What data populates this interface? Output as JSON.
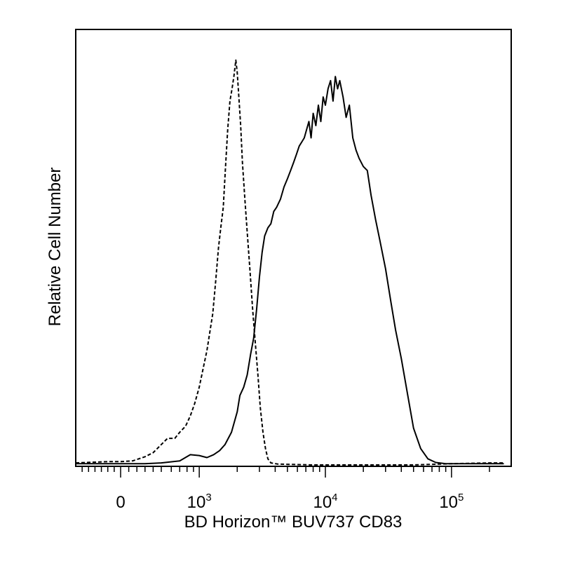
{
  "chart_data": {
    "type": "histogram",
    "xlabel": "BD Horizon™ BUV737 CD83",
    "ylabel": "Relative Cell Number",
    "x_scale": "biexponential (linear near 0, log above)",
    "x_tick_labels": [
      {
        "value": 0,
        "base": "0",
        "exp": ""
      },
      {
        "value": 1000,
        "base": "10",
        "exp": "3"
      },
      {
        "value": 10000,
        "base": "10",
        "exp": "4"
      },
      {
        "value": 100000,
        "base": "10",
        "exp": "5"
      }
    ],
    "xlim": [
      -700,
      260000
    ],
    "ylim": [
      0,
      100
    ],
    "grid": false,
    "legend": "none",
    "series": [
      {
        "style": "dashed",
        "points": [
          [
            -700,
            0.5
          ],
          [
            -200,
            0.8
          ],
          [
            0,
            0.8
          ],
          [
            150,
            1
          ],
          [
            300,
            2
          ],
          [
            400,
            3
          ],
          [
            500,
            5
          ],
          [
            560,
            6.5
          ],
          [
            640,
            6.5
          ],
          [
            700,
            8
          ],
          [
            780,
            9.5
          ],
          [
            850,
            12
          ],
          [
            920,
            15
          ],
          [
            1000,
            19
          ],
          [
            1080,
            24
          ],
          [
            1150,
            28
          ],
          [
            1220,
            33
          ],
          [
            1280,
            37
          ],
          [
            1350,
            45
          ],
          [
            1420,
            53
          ],
          [
            1480,
            58
          ],
          [
            1550,
            63
          ],
          [
            1610,
            72
          ],
          [
            1680,
            82
          ],
          [
            1750,
            89
          ],
          [
            1820,
            92
          ],
          [
            1880,
            95
          ],
          [
            1950,
            99
          ],
          [
            2000,
            96
          ],
          [
            2060,
            90
          ],
          [
            2130,
            83
          ],
          [
            2200,
            74
          ],
          [
            2300,
            65
          ],
          [
            2400,
            57
          ],
          [
            2520,
            48
          ],
          [
            2650,
            38
          ],
          [
            2780,
            30
          ],
          [
            2920,
            22
          ],
          [
            3050,
            14
          ],
          [
            3200,
            8
          ],
          [
            3350,
            4
          ],
          [
            3500,
            1.5
          ],
          [
            3700,
            0.5
          ],
          [
            4200,
            0.2
          ],
          [
            8000,
            0
          ],
          [
            20000,
            0
          ],
          [
            50000,
            0
          ],
          [
            100000,
            0.3
          ],
          [
            200000,
            0.5
          ],
          [
            260000,
            0.5
          ]
        ]
      },
      {
        "style": "solid",
        "points": [
          [
            -700,
            0.3
          ],
          [
            0,
            0.3
          ],
          [
            300,
            0.3
          ],
          [
            500,
            0.5
          ],
          [
            700,
            1
          ],
          [
            850,
            2.5
          ],
          [
            1000,
            2.3
          ],
          [
            1150,
            1.8
          ],
          [
            1300,
            2.5
          ],
          [
            1450,
            3.5
          ],
          [
            1600,
            5
          ],
          [
            1800,
            8
          ],
          [
            2000,
            13
          ],
          [
            2100,
            17
          ],
          [
            2250,
            19
          ],
          [
            2400,
            22
          ],
          [
            2550,
            27
          ],
          [
            2700,
            31
          ],
          [
            2850,
            38
          ],
          [
            3000,
            46
          ],
          [
            3150,
            52
          ],
          [
            3300,
            56
          ],
          [
            3500,
            58
          ],
          [
            3700,
            59
          ],
          [
            3900,
            62
          ],
          [
            4100,
            63
          ],
          [
            4400,
            65
          ],
          [
            4700,
            68
          ],
          [
            5000,
            70
          ],
          [
            5300,
            72
          ],
          [
            5600,
            74
          ],
          [
            5900,
            76
          ],
          [
            6200,
            78
          ],
          [
            6500,
            79
          ],
          [
            6800,
            80
          ],
          [
            7100,
            82
          ],
          [
            7400,
            84
          ],
          [
            7700,
            80
          ],
          [
            8000,
            86
          ],
          [
            8400,
            83
          ],
          [
            8800,
            88
          ],
          [
            9200,
            84
          ],
          [
            9600,
            90
          ],
          [
            10000,
            88
          ],
          [
            10500,
            92
          ],
          [
            11000,
            94
          ],
          [
            11500,
            89
          ],
          [
            12000,
            95
          ],
          [
            12500,
            92
          ],
          [
            13000,
            94
          ],
          [
            13800,
            90
          ],
          [
            14600,
            85
          ],
          [
            15500,
            88
          ],
          [
            16500,
            80
          ],
          [
            17500,
            77
          ],
          [
            18500,
            75
          ],
          [
            20000,
            73
          ],
          [
            21500,
            72
          ],
          [
            23000,
            66
          ],
          [
            25000,
            60
          ],
          [
            27000,
            55
          ],
          [
            30000,
            48
          ],
          [
            33000,
            40
          ],
          [
            36000,
            33
          ],
          [
            40000,
            26
          ],
          [
            45000,
            17
          ],
          [
            50000,
            9
          ],
          [
            57000,
            4
          ],
          [
            65000,
            1.5
          ],
          [
            75000,
            0.6
          ],
          [
            90000,
            0.3
          ],
          [
            150000,
            0.3
          ],
          [
            260000,
            0.3
          ]
        ]
      }
    ]
  }
}
